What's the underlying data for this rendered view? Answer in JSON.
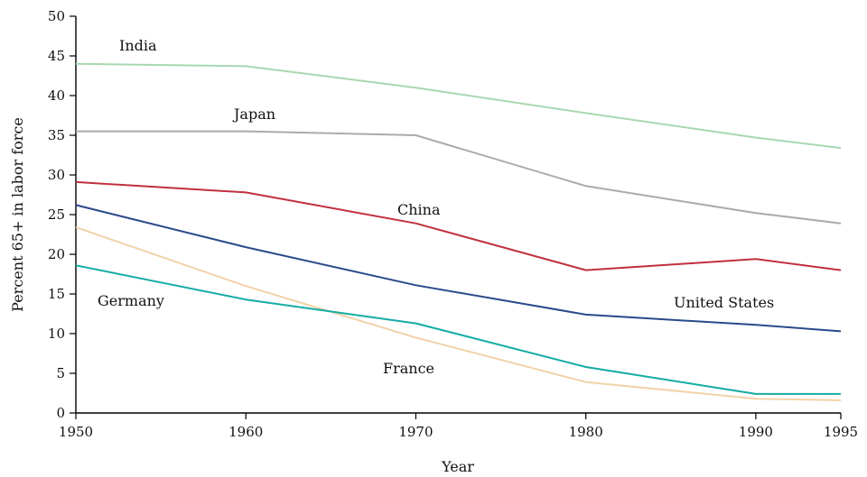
{
  "chart_data": {
    "type": "line",
    "title": "",
    "xlabel": "Year",
    "ylabel": "Percent 65+ in labor force",
    "xlim": [
      1950,
      1995
    ],
    "ylim": [
      0,
      50
    ],
    "x_ticks": [
      1950,
      1960,
      1970,
      1980,
      1990,
      1995
    ],
    "y_ticks": [
      0,
      5,
      10,
      15,
      20,
      25,
      30,
      35,
      40,
      45,
      50
    ],
    "x": [
      1950,
      1960,
      1970,
      1980,
      1990,
      1995
    ],
    "grid": false,
    "legend": "inline labels",
    "series": [
      {
        "name": "India",
        "color": "#a8d8b0",
        "values": [
          44.0,
          43.7,
          41.0,
          37.8,
          34.7,
          33.4
        ]
      },
      {
        "name": "Japan",
        "color": "#a9abae",
        "values": [
          35.5,
          35.5,
          35.0,
          28.6,
          25.2,
          23.9
        ]
      },
      {
        "name": "China",
        "color": "#c0303c",
        "values": [
          29.1,
          27.8,
          23.9,
          18.0,
          19.4,
          18.0
        ]
      },
      {
        "name": "United States",
        "color": "#2a4a8a",
        "values": [
          26.2,
          20.9,
          16.1,
          12.4,
          11.1,
          10.3
        ]
      },
      {
        "name": "Germany",
        "color": "#13aca3",
        "values": [
          18.6,
          14.3,
          11.3,
          5.8,
          2.4,
          2.4
        ]
      },
      {
        "name": "France",
        "color": "#f2d2a8",
        "values": [
          23.4,
          16.0,
          9.5,
          3.9,
          1.8,
          1.6
        ]
      }
    ]
  }
}
